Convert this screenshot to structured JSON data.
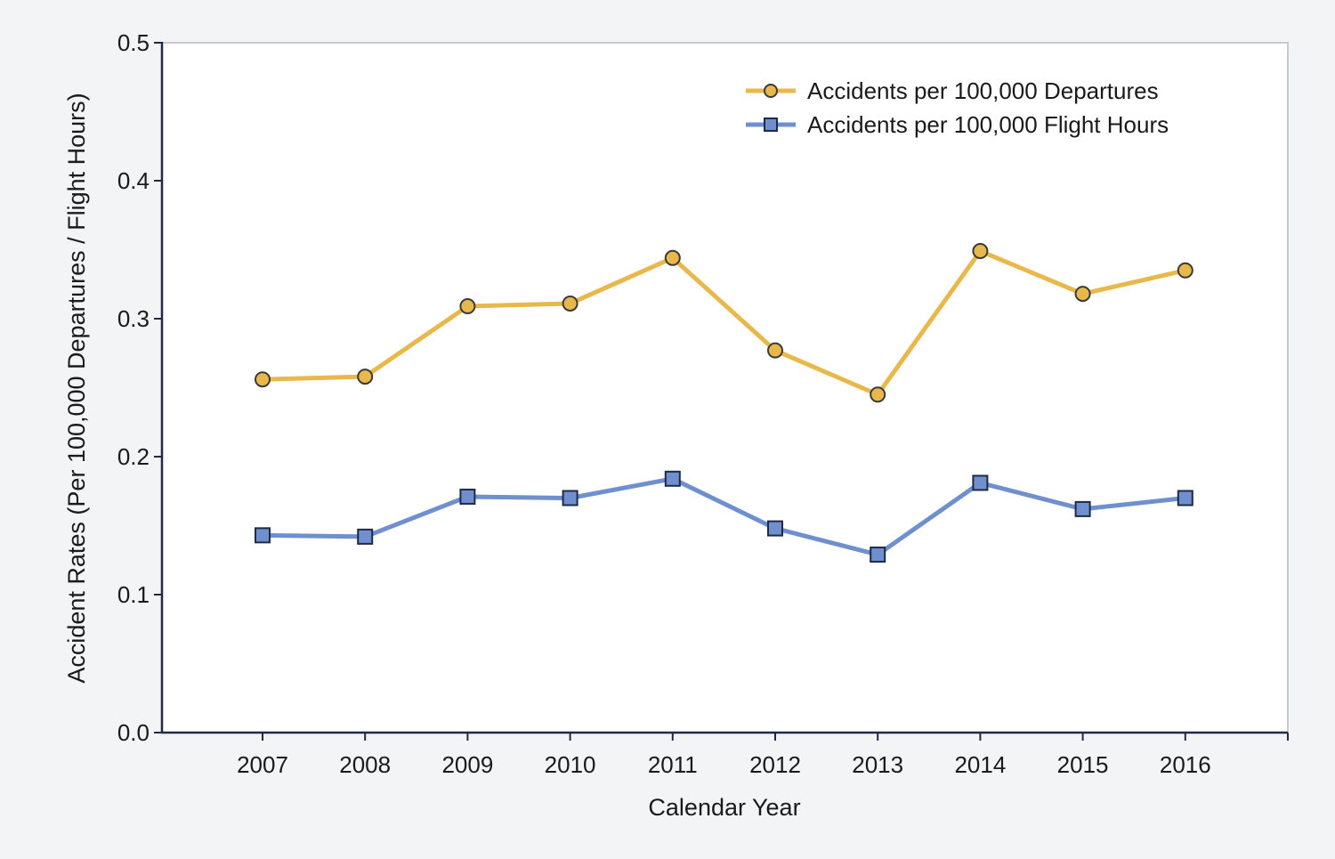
{
  "chart_data": {
    "type": "line",
    "title": "",
    "xlabel": "Calendar Year",
    "ylabel": "Accident Rates (Per 100,000 Departures / Flight Hours)",
    "categories": [
      "2007",
      "2008",
      "2009",
      "2010",
      "2011",
      "2012",
      "2013",
      "2014",
      "2015",
      "2016"
    ],
    "ylim": [
      0,
      0.5
    ],
    "yticks": [
      "0.0",
      "0.1",
      "0.2",
      "0.3",
      "0.4",
      "0.5"
    ],
    "grid": false,
    "legend_position": "top-right",
    "series": [
      {
        "name": "Accidents per 100,000 Departures",
        "color": "#e8b84a",
        "marker": "circle",
        "values": [
          0.256,
          0.258,
          0.309,
          0.311,
          0.344,
          0.277,
          0.245,
          0.349,
          0.318,
          0.335
        ]
      },
      {
        "name": "Accidents per 100,000 Flight Hours",
        "color": "#6f8fcf",
        "marker": "square",
        "values": [
          0.143,
          0.142,
          0.171,
          0.17,
          0.184,
          0.148,
          0.129,
          0.181,
          0.162,
          0.17
        ]
      }
    ]
  }
}
